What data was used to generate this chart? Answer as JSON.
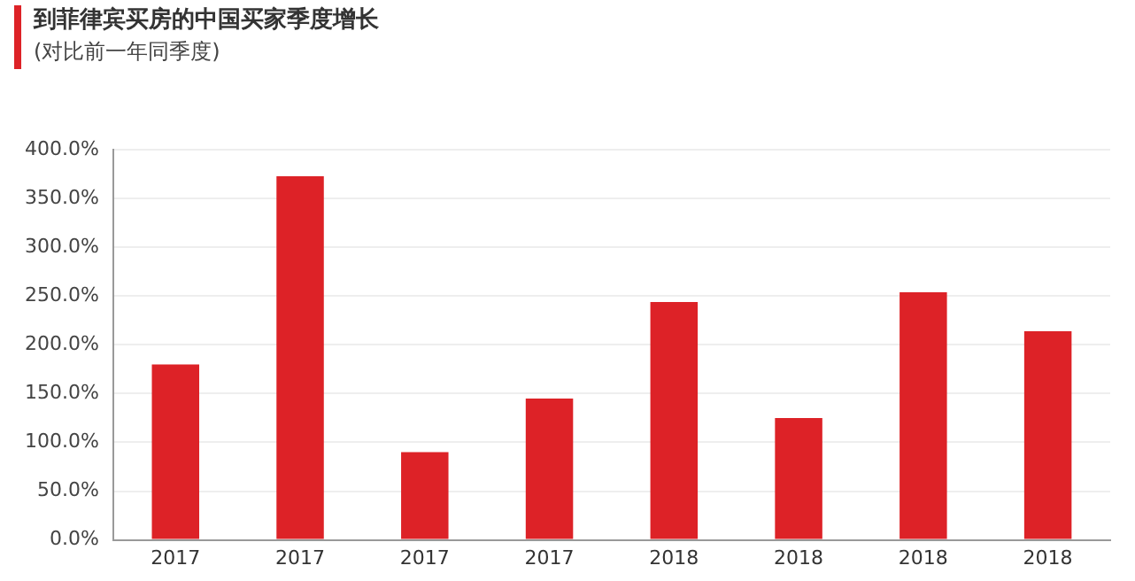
{
  "chart_data": {
    "type": "bar",
    "title": "到菲律宾买房的中国买家季度增长",
    "subtitle": "(对比前一年同季度)",
    "categories": [
      "2017",
      "2017",
      "2017",
      "2017",
      "2018",
      "2018",
      "2018",
      "2018"
    ],
    "values": [
      180,
      373,
      90,
      145,
      244,
      125,
      254,
      214
    ],
    "color": "#dd2227",
    "ylim": [
      0,
      400
    ],
    "yticks": [
      {
        "value": 0,
        "label": "0.0%"
      },
      {
        "value": 50,
        "label": "50.0%"
      },
      {
        "value": 100,
        "label": "100.0%"
      },
      {
        "value": 150,
        "label": "150.0%"
      },
      {
        "value": 200,
        "label": "200.0%"
      },
      {
        "value": 250,
        "label": "250.0%"
      },
      {
        "value": 300,
        "label": "300.0%"
      },
      {
        "value": 350,
        "label": "350.0%"
      },
      {
        "value": 400,
        "label": "400.0%"
      }
    ],
    "grid": "y",
    "legend": false
  }
}
